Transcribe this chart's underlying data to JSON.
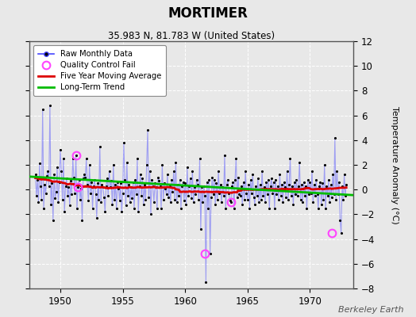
{
  "title": "MORTIMER",
  "subtitle": "35.983 N, 81.783 W (United States)",
  "ylabel": "Temperature Anomaly (°C)",
  "credit": "Berkeley Earth",
  "xlim": [
    1947.5,
    1973.5
  ],
  "ylim": [
    -8,
    12
  ],
  "yticks": [
    -8,
    -6,
    -4,
    -2,
    0,
    2,
    4,
    6,
    8,
    10,
    12
  ],
  "xticks": [
    1950,
    1955,
    1960,
    1965,
    1970
  ],
  "bg_color": "#e8e8e8",
  "plot_bg": "#e8e8e8",
  "raw_color": "#4444ff",
  "raw_alpha": 0.45,
  "dot_color": "#000000",
  "ma_color": "#dd0000",
  "trend_color": "#00bb00",
  "qc_color": "#ff44ff",
  "raw_data_x": [
    1948.0,
    1948.083,
    1948.167,
    1948.25,
    1948.333,
    1948.417,
    1948.5,
    1948.583,
    1948.667,
    1948.75,
    1948.833,
    1948.917,
    1949.0,
    1949.083,
    1949.167,
    1949.25,
    1949.333,
    1949.417,
    1949.5,
    1949.583,
    1949.667,
    1949.75,
    1949.833,
    1949.917,
    1950.0,
    1950.083,
    1950.167,
    1950.25,
    1950.333,
    1950.417,
    1950.5,
    1950.583,
    1950.667,
    1950.75,
    1950.833,
    1950.917,
    1951.0,
    1951.083,
    1951.167,
    1951.25,
    1951.333,
    1951.417,
    1951.5,
    1951.583,
    1951.667,
    1951.75,
    1951.833,
    1951.917,
    1952.0,
    1952.083,
    1952.167,
    1952.25,
    1952.333,
    1952.417,
    1952.5,
    1952.583,
    1952.667,
    1952.75,
    1952.833,
    1952.917,
    1953.0,
    1953.083,
    1953.167,
    1953.25,
    1953.333,
    1953.417,
    1953.5,
    1953.583,
    1953.667,
    1953.75,
    1953.833,
    1953.917,
    1954.0,
    1954.083,
    1954.167,
    1954.25,
    1954.333,
    1954.417,
    1954.5,
    1954.583,
    1954.667,
    1954.75,
    1954.833,
    1954.917,
    1955.0,
    1955.083,
    1955.167,
    1955.25,
    1955.333,
    1955.417,
    1955.5,
    1955.583,
    1955.667,
    1955.75,
    1955.833,
    1955.917,
    1956.0,
    1956.083,
    1956.167,
    1956.25,
    1956.333,
    1956.417,
    1956.5,
    1956.583,
    1956.667,
    1956.75,
    1956.833,
    1956.917,
    1957.0,
    1957.083,
    1957.167,
    1957.25,
    1957.333,
    1957.417,
    1957.5,
    1957.583,
    1957.667,
    1957.75,
    1957.833,
    1957.917,
    1958.0,
    1958.083,
    1958.167,
    1958.25,
    1958.333,
    1958.417,
    1958.5,
    1958.583,
    1958.667,
    1958.75,
    1958.833,
    1958.917,
    1959.0,
    1959.083,
    1959.167,
    1959.25,
    1959.333,
    1959.417,
    1959.5,
    1959.583,
    1959.667,
    1959.75,
    1959.833,
    1959.917,
    1960.0,
    1960.083,
    1960.167,
    1960.25,
    1960.333,
    1960.417,
    1960.5,
    1960.583,
    1960.667,
    1960.75,
    1960.833,
    1960.917,
    1961.0,
    1961.083,
    1961.167,
    1961.25,
    1961.333,
    1961.417,
    1961.5,
    1961.583,
    1961.667,
    1961.75,
    1961.833,
    1961.917,
    1962.0,
    1962.083,
    1962.167,
    1962.25,
    1962.333,
    1962.417,
    1962.5,
    1962.583,
    1962.667,
    1962.75,
    1962.833,
    1962.917,
    1963.0,
    1963.083,
    1963.167,
    1963.25,
    1963.333,
    1963.417,
    1963.5,
    1963.583,
    1963.667,
    1963.75,
    1963.833,
    1963.917,
    1964.0,
    1964.083,
    1964.167,
    1964.25,
    1964.333,
    1964.417,
    1964.5,
    1964.583,
    1964.667,
    1964.75,
    1964.833,
    1964.917,
    1965.0,
    1965.083,
    1965.167,
    1965.25,
    1965.333,
    1965.417,
    1965.5,
    1965.583,
    1965.667,
    1965.75,
    1965.833,
    1965.917,
    1966.0,
    1966.083,
    1966.167,
    1966.25,
    1966.333,
    1966.417,
    1966.5,
    1966.583,
    1966.667,
    1966.75,
    1966.833,
    1966.917,
    1967.0,
    1967.083,
    1967.167,
    1967.25,
    1967.333,
    1967.417,
    1967.5,
    1967.583,
    1967.667,
    1967.75,
    1967.833,
    1967.917,
    1968.0,
    1968.083,
    1968.167,
    1968.25,
    1968.333,
    1968.417,
    1968.5,
    1968.583,
    1968.667,
    1968.75,
    1968.833,
    1968.917,
    1969.0,
    1969.083,
    1969.167,
    1969.25,
    1969.333,
    1969.417,
    1969.5,
    1969.583,
    1969.667,
    1969.75,
    1969.833,
    1969.917,
    1970.0,
    1970.083,
    1970.167,
    1970.25,
    1970.333,
    1970.417,
    1970.5,
    1970.583,
    1970.667,
    1970.75,
    1970.833,
    1970.917,
    1971.0,
    1971.083,
    1971.167,
    1971.25,
    1971.333,
    1971.417,
    1971.5,
    1971.583,
    1971.667,
    1971.75,
    1971.833,
    1971.917,
    1972.0,
    1972.083,
    1972.167,
    1972.25,
    1972.333,
    1972.417,
    1972.5,
    1972.583,
    1972.667,
    1972.75,
    1972.833,
    1972.917
  ],
  "raw_data_y": [
    1.2,
    -0.5,
    0.8,
    -1.0,
    2.1,
    0.3,
    -0.8,
    6.5,
    -1.5,
    0.4,
    -0.3,
    1.1,
    1.5,
    0.3,
    6.8,
    -1.2,
    0.5,
    -2.5,
    1.2,
    -0.7,
    -0.2,
    1.8,
    -1.0,
    0.6,
    3.2,
    1.5,
    -0.8,
    2.5,
    -1.8,
    0.3,
    0.9,
    -0.5,
    0.2,
    -1.3,
    0.7,
    -0.4,
    2.5,
    1.0,
    -0.3,
    2.8,
    -1.5,
    0.2,
    0.8,
    -0.8,
    0.1,
    -2.5,
    0.9,
    1.2,
    1.0,
    2.5,
    0.4,
    -0.9,
    2.0,
    -0.3,
    0.6,
    -1.5,
    0.3,
    0.8,
    -0.4,
    -2.3,
    0.5,
    -0.8,
    3.5,
    -1.0,
    0.4,
    0.2,
    -0.6,
    -1.8,
    0.3,
    0.9,
    -0.5,
    1.5,
    0.2,
    0.7,
    -1.2,
    2.0,
    -0.8,
    0.4,
    -1.5,
    0.6,
    0.1,
    -0.9,
    0.5,
    -1.8,
    -0.3,
    3.8,
    0.8,
    -1.3,
    2.2,
    -0.5,
    0.4,
    -1.0,
    0.2,
    -0.7,
    0.6,
    -1.5,
    0.8,
    -0.4,
    2.5,
    -1.8,
    0.3,
    1.2,
    -0.5,
    0.9,
    -1.2,
    0.4,
    -0.8,
    2.0,
    4.8,
    -0.6,
    1.5,
    -2.0,
    0.8,
    0.3,
    -1.0,
    0.5,
    0.2,
    -1.5,
    1.0,
    0.7,
    0.3,
    -1.5,
    2.0,
    -0.8,
    0.5,
    0.1,
    -0.4,
    1.2,
    -0.6,
    0.3,
    -1.0,
    0.8,
    -0.2,
    1.5,
    -0.8,
    2.2,
    -1.0,
    0.4,
    -0.5,
    0.8,
    -1.5,
    0.3,
    0.6,
    -0.9,
    0.5,
    -1.2,
    1.8,
    -0.5,
    0.3,
    0.9,
    -0.7,
    1.5,
    -1.0,
    0.2,
    -0.4,
    0.8,
    0.4,
    -0.8,
    2.5,
    -3.2,
    0.2,
    -1.0,
    0.3,
    -0.5,
    -7.5,
    0.6,
    -1.5,
    0.8,
    -5.2,
    -0.6,
    1.0,
    -0.4,
    0.8,
    -1.2,
    0.5,
    -0.8,
    1.5,
    -0.3,
    0.4,
    -1.0,
    0.2,
    -0.5,
    2.8,
    -1.5,
    0.4,
    0.8,
    -0.3,
    -0.9,
    -1.0,
    0.3,
    0.6,
    -1.5,
    0.8,
    2.5,
    -0.6,
    1.0,
    -0.4,
    -0.5,
    0.3,
    -1.2,
    0.6,
    -0.8,
    1.5,
    -0.3,
    -0.8,
    0.4,
    -1.5,
    0.8,
    -0.3,
    1.2,
    -0.6,
    -1.2,
    0.3,
    -0.5,
    0.9,
    -1.0,
    0.4,
    -0.8,
    1.5,
    -0.5,
    0.2,
    -1.0,
    0.6,
    -0.4,
    0.8,
    -1.5,
    0.3,
    0.9,
    -0.3,
    0.6,
    -1.5,
    0.8,
    -0.4,
    0.3,
    -0.8,
    1.2,
    -0.5,
    0.4,
    -1.0,
    0.6,
    0.2,
    -0.6,
    1.5,
    -0.8,
    0.4,
    2.5,
    -0.5,
    0.3,
    -1.2,
    0.6,
    -0.4,
    0.8,
    -0.5,
    0.3,
    2.2,
    -0.8,
    0.4,
    -1.0,
    0.6,
    -0.5,
    0.3,
    -1.5,
    0.8,
    -0.4,
    0.6,
    -0.3,
    1.5,
    -1.0,
    0.4,
    -0.5,
    0.8,
    -0.4,
    -1.5,
    0.3,
    0.6,
    -1.2,
    0.5,
    -0.8,
    2.0,
    -1.5,
    0.3,
    -0.5,
    0.8,
    -1.0,
    0.4,
    -0.6,
    1.2,
    -0.4,
    4.2,
    -0.8,
    1.5,
    -0.4,
    0.6,
    -2.5,
    -3.5,
    0.3,
    -0.8,
    1.2,
    -0.5,
    0.4
  ],
  "qc_fail_points": [
    [
      1951.25,
      2.8
    ],
    [
      1951.417,
      0.2
    ],
    [
      1961.583,
      -5.2
    ],
    [
      1963.667,
      -1.0
    ],
    [
      1971.75,
      -3.5
    ]
  ],
  "trend_x": [
    1947.5,
    1973.5
  ],
  "trend_y": [
    1.05,
    -0.45
  ]
}
